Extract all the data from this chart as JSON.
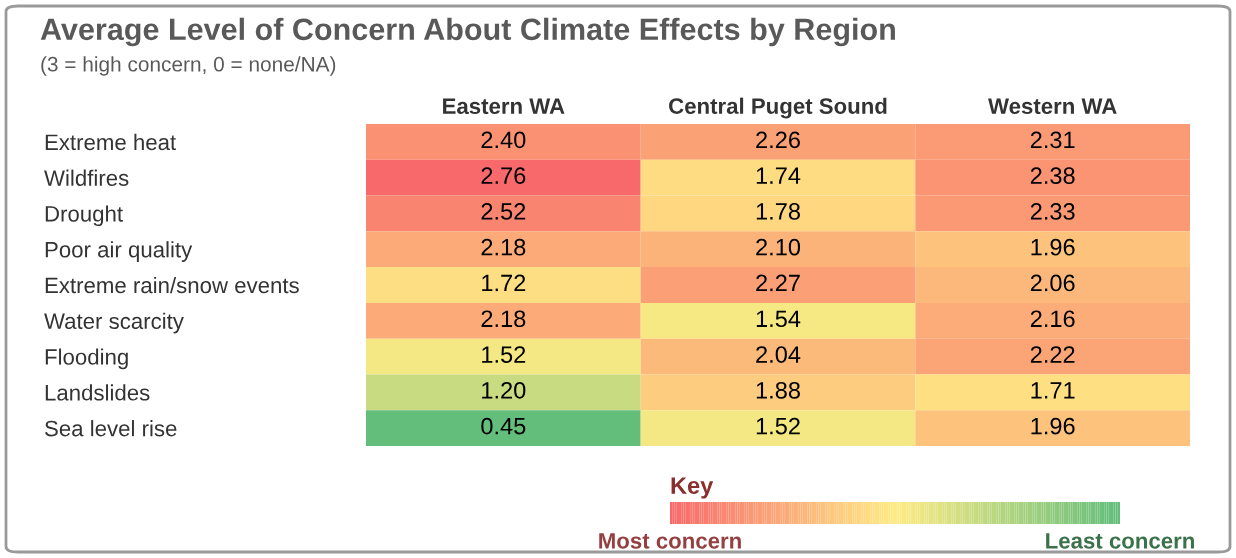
{
  "chart_data": {
    "type": "heatmap",
    "title": "Average Level of Concern About Climate Effects by Region",
    "subtitle": "(3 = high concern, 0 = none/NA)",
    "categories": [
      "Eastern WA",
      "Central Puget Sound",
      "Western WA"
    ],
    "y_categories": [
      "Extreme heat",
      "Wildfires",
      "Drought",
      "Poor air quality",
      "Extreme rain/snow events",
      "Water scarcity",
      "Flooding",
      "Landslides",
      "Sea level rise"
    ],
    "cells": [
      [
        2.4,
        2.26,
        2.31
      ],
      [
        2.76,
        1.74,
        2.38
      ],
      [
        2.52,
        1.78,
        2.33
      ],
      [
        2.18,
        2.1,
        1.96
      ],
      [
        1.72,
        2.27,
        2.06
      ],
      [
        2.18,
        1.54,
        2.16
      ],
      [
        1.52,
        2.04,
        2.22
      ],
      [
        1.2,
        1.88,
        1.71
      ],
      [
        0.45,
        1.52,
        1.96
      ]
    ],
    "cell_labels": [
      [
        "2.40",
        "2.26",
        "2.31"
      ],
      [
        "2.76",
        "1.74",
        "2.38"
      ],
      [
        "2.52",
        "1.78",
        "2.33"
      ],
      [
        "2.18",
        "2.10",
        "1.96"
      ],
      [
        "1.72",
        "2.27",
        "2.06"
      ],
      [
        "2.18",
        "1.54",
        "2.16"
      ],
      [
        "1.52",
        "2.04",
        "2.22"
      ],
      [
        "1.20",
        "1.88",
        "1.71"
      ],
      [
        "0.45",
        "1.52",
        "1.96"
      ]
    ],
    "clabel": "Key",
    "clim": [
      2.76,
      0.45
    ],
    "cticks": [
      {
        "value": 2.76,
        "label": "Most concern"
      },
      {
        "value": 0.45,
        "label": "Least concern"
      }
    ]
  }
}
